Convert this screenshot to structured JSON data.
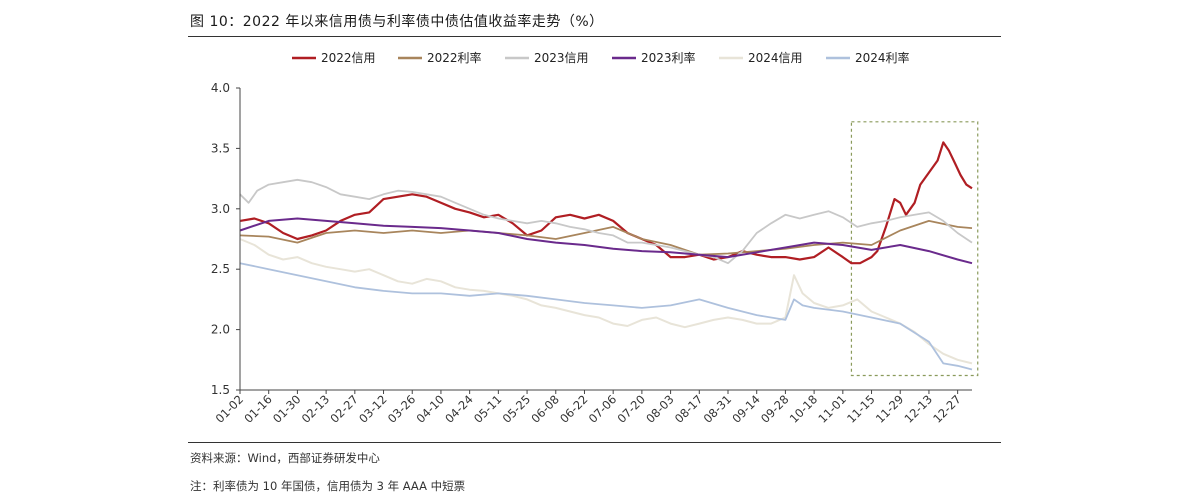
{
  "header": {
    "title": "图 10：2022 年以来信用债与利率债中债估值收益率走势（%）"
  },
  "footer": {
    "source": "资料来源：Wind，西部证券研发中心",
    "note": "注：利率债为 10 年国债，信用债为 3 年 AAA 中短票"
  },
  "chart_data": {
    "type": "line",
    "title": "",
    "xlabel": "",
    "ylabel": "",
    "ylim": [
      1.5,
      4.0
    ],
    "yticks": [
      "1.5",
      "2.0",
      "2.5",
      "3.0",
      "3.5",
      "4.0"
    ],
    "categories": [
      "01-02",
      "01-16",
      "01-30",
      "02-13",
      "02-27",
      "03-12",
      "03-26",
      "04-10",
      "04-24",
      "05-11",
      "05-25",
      "06-08",
      "06-22",
      "07-06",
      "07-20",
      "08-03",
      "08-17",
      "08-31",
      "09-14",
      "09-28",
      "10-18",
      "11-01",
      "11-15",
      "11-29",
      "12-13",
      "12-27"
    ],
    "x_range": [
      0,
      25.5
    ],
    "legend_position": "top",
    "grid": false,
    "highlight_box": {
      "x_from": 21.3,
      "x_to": 25.7,
      "y_from": 1.62,
      "y_to": 3.72
    },
    "series": [
      {
        "name": "2022信用",
        "color": "#b01e23",
        "width": 2.2,
        "x": [
          0,
          0.5,
          1,
          1.5,
          2,
          2.5,
          3,
          3.5,
          4,
          4.5,
          5,
          5.5,
          6,
          6.5,
          7,
          7.5,
          8,
          8.5,
          9,
          9.5,
          10,
          10.5,
          11,
          11.5,
          12,
          12.5,
          13,
          13.5,
          14,
          14.5,
          15,
          15.5,
          16,
          16.5,
          17,
          17.5,
          18,
          18.5,
          19,
          19.5,
          20,
          20.5,
          21,
          21.3,
          21.6,
          22,
          22.2,
          22.5,
          22.8,
          23,
          23.2,
          23.5,
          23.7,
          24,
          24.3,
          24.5,
          24.7,
          24.9,
          25.1,
          25.3,
          25.5
        ],
        "values": [
          2.9,
          2.92,
          2.88,
          2.8,
          2.75,
          2.78,
          2.82,
          2.9,
          2.95,
          2.97,
          3.08,
          3.1,
          3.12,
          3.1,
          3.05,
          3.0,
          2.97,
          2.93,
          2.95,
          2.88,
          2.78,
          2.82,
          2.93,
          2.95,
          2.92,
          2.95,
          2.9,
          2.8,
          2.75,
          2.7,
          2.6,
          2.6,
          2.62,
          2.58,
          2.6,
          2.65,
          2.62,
          2.6,
          2.6,
          2.58,
          2.6,
          2.68,
          2.6,
          2.55,
          2.55,
          2.6,
          2.65,
          2.85,
          3.08,
          3.05,
          2.95,
          3.05,
          3.2,
          3.3,
          3.4,
          3.55,
          3.48,
          3.38,
          3.28,
          3.2,
          3.17
        ]
      },
      {
        "name": "2022利率",
        "color": "#a8855c",
        "width": 1.8,
        "x": [
          0,
          1,
          2,
          3,
          4,
          5,
          6,
          7,
          8,
          9,
          10,
          11,
          12,
          13,
          14,
          15,
          16,
          17,
          18,
          19,
          20,
          21,
          22,
          23,
          24,
          25,
          25.5
        ],
        "values": [
          2.78,
          2.77,
          2.72,
          2.8,
          2.82,
          2.8,
          2.82,
          2.8,
          2.82,
          2.8,
          2.78,
          2.75,
          2.8,
          2.85,
          2.75,
          2.7,
          2.62,
          2.63,
          2.65,
          2.67,
          2.7,
          2.72,
          2.7,
          2.82,
          2.9,
          2.85,
          2.84
        ]
      },
      {
        "name": "2023信用",
        "color": "#c8c8c8",
        "width": 1.8,
        "x": [
          0,
          0.3,
          0.6,
          1,
          1.5,
          2,
          2.5,
          3,
          3.5,
          4,
          4.5,
          5,
          5.5,
          6,
          6.5,
          7,
          7.5,
          8,
          8.5,
          9,
          9.5,
          10,
          10.5,
          11,
          11.5,
          12,
          12.5,
          13,
          13.5,
          14,
          14.5,
          15,
          15.5,
          16,
          16.5,
          17,
          17.5,
          18,
          18.5,
          19,
          19.5,
          20,
          20.5,
          21,
          21.5,
          22,
          22.5,
          23,
          23.5,
          24,
          24.5,
          25,
          25.5
        ],
        "values": [
          3.12,
          3.05,
          3.15,
          3.2,
          3.22,
          3.24,
          3.22,
          3.18,
          3.12,
          3.1,
          3.08,
          3.12,
          3.15,
          3.14,
          3.12,
          3.1,
          3.05,
          3.0,
          2.95,
          2.92,
          2.9,
          2.88,
          2.9,
          2.88,
          2.85,
          2.83,
          2.8,
          2.78,
          2.72,
          2.72,
          2.7,
          2.68,
          2.65,
          2.62,
          2.6,
          2.55,
          2.65,
          2.8,
          2.88,
          2.95,
          2.92,
          2.95,
          2.98,
          2.93,
          2.85,
          2.88,
          2.9,
          2.93,
          2.95,
          2.97,
          2.9,
          2.8,
          2.72
        ]
      },
      {
        "name": "2023利率",
        "color": "#6a2a8c",
        "width": 2.0,
        "x": [
          0,
          1,
          2,
          3,
          4,
          5,
          6,
          7,
          8,
          9,
          10,
          11,
          12,
          13,
          14,
          15,
          16,
          17,
          18,
          19,
          20,
          21,
          22,
          23,
          24,
          25,
          25.5
        ],
        "values": [
          2.82,
          2.9,
          2.92,
          2.9,
          2.88,
          2.86,
          2.85,
          2.84,
          2.82,
          2.8,
          2.75,
          2.72,
          2.7,
          2.67,
          2.65,
          2.64,
          2.62,
          2.6,
          2.64,
          2.68,
          2.72,
          2.7,
          2.66,
          2.7,
          2.65,
          2.58,
          2.55
        ]
      },
      {
        "name": "2024信用",
        "color": "#e8e4d8",
        "width": 2.0,
        "x": [
          0,
          0.5,
          1,
          1.5,
          2,
          2.5,
          3,
          3.5,
          4,
          4.5,
          5,
          5.5,
          6,
          6.5,
          7,
          7.5,
          8,
          8.5,
          9,
          9.5,
          10,
          10.5,
          11,
          11.5,
          12,
          12.5,
          13,
          13.5,
          14,
          14.5,
          15,
          15.5,
          16,
          16.5,
          17,
          17.5,
          18,
          18.5,
          19,
          19.3,
          19.6,
          20,
          20.5,
          21,
          21.5,
          22,
          22.5,
          23,
          23.5,
          24,
          24.5,
          25,
          25.5
        ],
        "values": [
          2.75,
          2.7,
          2.62,
          2.58,
          2.6,
          2.55,
          2.52,
          2.5,
          2.48,
          2.5,
          2.45,
          2.4,
          2.38,
          2.42,
          2.4,
          2.35,
          2.33,
          2.32,
          2.3,
          2.28,
          2.25,
          2.2,
          2.18,
          2.15,
          2.12,
          2.1,
          2.05,
          2.03,
          2.08,
          2.1,
          2.05,
          2.02,
          2.05,
          2.08,
          2.1,
          2.08,
          2.05,
          2.05,
          2.1,
          2.45,
          2.3,
          2.22,
          2.18,
          2.2,
          2.25,
          2.15,
          2.1,
          2.05,
          1.98,
          1.88,
          1.8,
          1.75,
          1.72
        ]
      },
      {
        "name": "2024利率",
        "color": "#aec1dd",
        "width": 1.8,
        "x": [
          0,
          1,
          2,
          3,
          4,
          5,
          6,
          7,
          8,
          9,
          10,
          11,
          12,
          13,
          14,
          15,
          16,
          17,
          18,
          19,
          19.3,
          19.6,
          20,
          21,
          22,
          23,
          24,
          24.5,
          25,
          25.5
        ],
        "values": [
          2.55,
          2.5,
          2.45,
          2.4,
          2.35,
          2.32,
          2.3,
          2.3,
          2.28,
          2.3,
          2.28,
          2.25,
          2.22,
          2.2,
          2.18,
          2.2,
          2.25,
          2.18,
          2.12,
          2.08,
          2.25,
          2.2,
          2.18,
          2.15,
          2.1,
          2.05,
          1.9,
          1.72,
          1.7,
          1.67
        ]
      }
    ]
  }
}
